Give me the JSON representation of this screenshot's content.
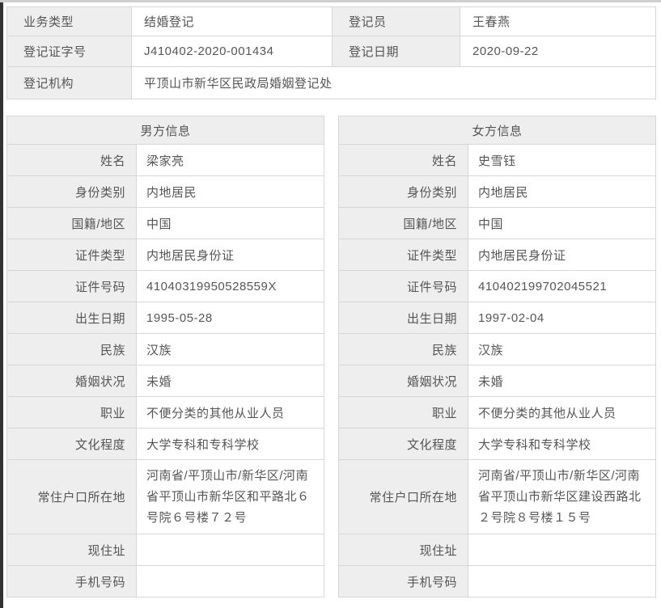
{
  "theme": {
    "border_color": "#d6d6d6",
    "label_background": "#eeeeee",
    "text_color": "#555555",
    "page_background": "#ffffff",
    "left_edge_color": "#333333"
  },
  "registration": {
    "rows": [
      {
        "label1": "业务类型",
        "value1": "结婚登记",
        "label2": "登记员",
        "value2": "王春燕"
      },
      {
        "label1": "登记证字号",
        "value1": "J410402-2020-001434",
        "label2": "登记日期",
        "value2": "2020-09-22"
      }
    ],
    "agency_label": "登记机构",
    "agency_value": "平顶山市新华区民政局婚姻登记处"
  },
  "male": {
    "title": "男方信息",
    "fields": [
      {
        "label": "姓名",
        "value": "梁家亮"
      },
      {
        "label": "身份类别",
        "value": "内地居民"
      },
      {
        "label": "国籍/地区",
        "value": "中国"
      },
      {
        "label": "证件类型",
        "value": "内地居民身份证"
      },
      {
        "label": "证件号码",
        "value": "41040319950528559X"
      },
      {
        "label": "出生日期",
        "value": "1995-05-28"
      },
      {
        "label": "民族",
        "value": "汉族"
      },
      {
        "label": "婚姻状况",
        "value": "未婚"
      },
      {
        "label": "职业",
        "value": "不便分类的其他从业人员"
      },
      {
        "label": "文化程度",
        "value": "大学专科和专科学校"
      },
      {
        "label": "常住户口所在地",
        "value": "河南省/平顶山市/新华区/河南省平顶山市新华区和平路北６号院６号楼７２号",
        "tall": true
      },
      {
        "label": "现住址",
        "value": ""
      },
      {
        "label": "手机号码",
        "value": ""
      }
    ]
  },
  "female": {
    "title": "女方信息",
    "fields": [
      {
        "label": "姓名",
        "value": "史雪钰"
      },
      {
        "label": "身份类别",
        "value": "内地居民"
      },
      {
        "label": "国籍/地区",
        "value": "中国"
      },
      {
        "label": "证件类型",
        "value": "内地居民身份证"
      },
      {
        "label": "证件号码",
        "value": "410402199702045521"
      },
      {
        "label": "出生日期",
        "value": "1997-02-04"
      },
      {
        "label": "民族",
        "value": "汉族"
      },
      {
        "label": "婚姻状况",
        "value": "未婚"
      },
      {
        "label": "职业",
        "value": "不便分类的其他从业人员"
      },
      {
        "label": "文化程度",
        "value": "大学专科和专科学校"
      },
      {
        "label": "常住户口所在地",
        "value": "河南省/平顶山市/新华区/河南省平顶山市新华区建设西路北２号院８号楼１５号",
        "tall": true
      },
      {
        "label": "现住址",
        "value": ""
      },
      {
        "label": "手机号码",
        "value": ""
      }
    ]
  }
}
